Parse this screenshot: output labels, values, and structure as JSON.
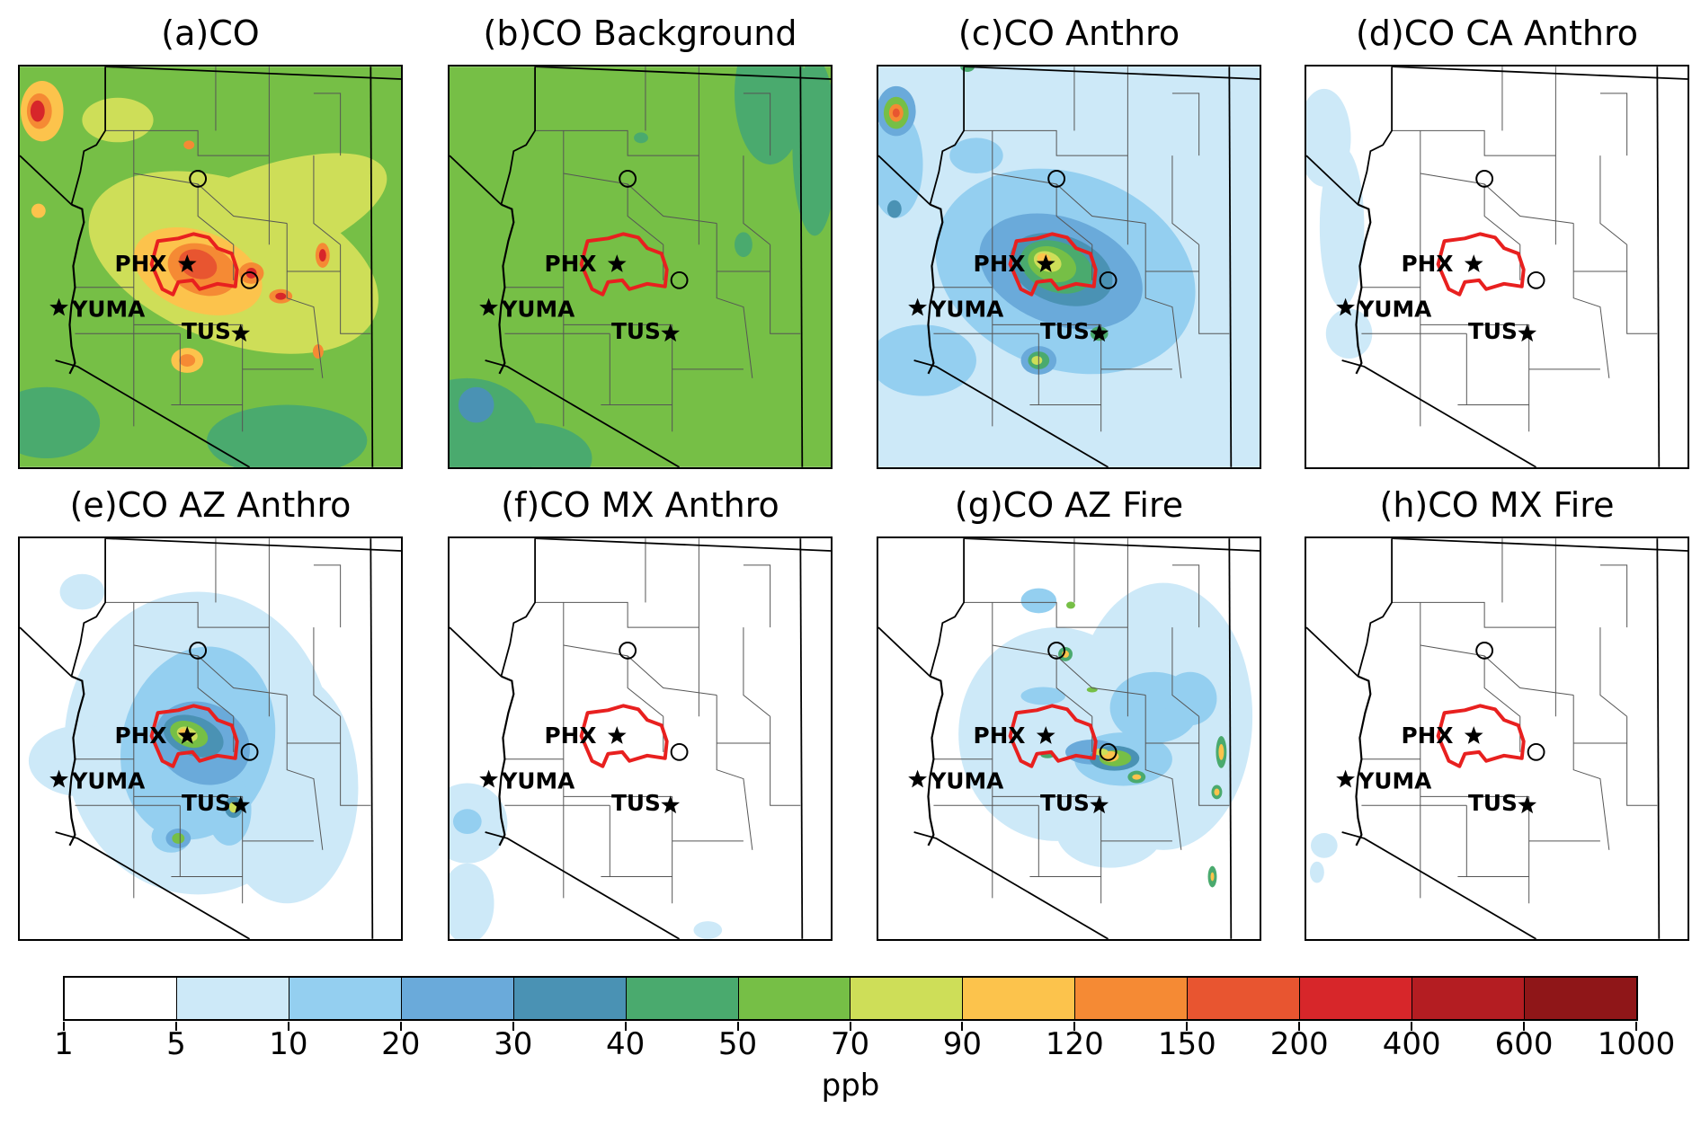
{
  "panels": [
    {
      "title": "(a)CO",
      "theme": "total"
    },
    {
      "title": "(b)CO Background",
      "theme": "background"
    },
    {
      "title": "(c)CO Anthro",
      "theme": "anthro"
    },
    {
      "title": "(d)CO CA Anthro",
      "theme": "ca"
    },
    {
      "title": "(e)CO AZ Anthro",
      "theme": "az"
    },
    {
      "title": "(f)CO MX Anthro",
      "theme": "mx"
    },
    {
      "title": "(g)CO AZ Fire",
      "theme": "azfire"
    },
    {
      "title": "(h)CO MX Fire",
      "theme": "mxfire"
    }
  ],
  "cities": {
    "phx": "PHX",
    "yuma": "YUMA",
    "tus": "TUS"
  },
  "colorbar": {
    "ticks": [
      "1",
      "5",
      "10",
      "20",
      "30",
      "40",
      "50",
      "70",
      "90",
      "120",
      "150",
      "200",
      "400",
      "600",
      "1000"
    ],
    "colors": [
      "#ffffff",
      "#cde9f8",
      "#94cff0",
      "#6aaada",
      "#4a92b4",
      "#4aaa6e",
      "#76bf46",
      "#cede58",
      "#fcc34c",
      "#f58a34",
      "#e85530",
      "#d7262a",
      "#b41d22",
      "#8f1618"
    ],
    "unit": "ppb"
  },
  "colors": {
    "metro_outline": "#e8201f",
    "boundary": "#000000"
  }
}
